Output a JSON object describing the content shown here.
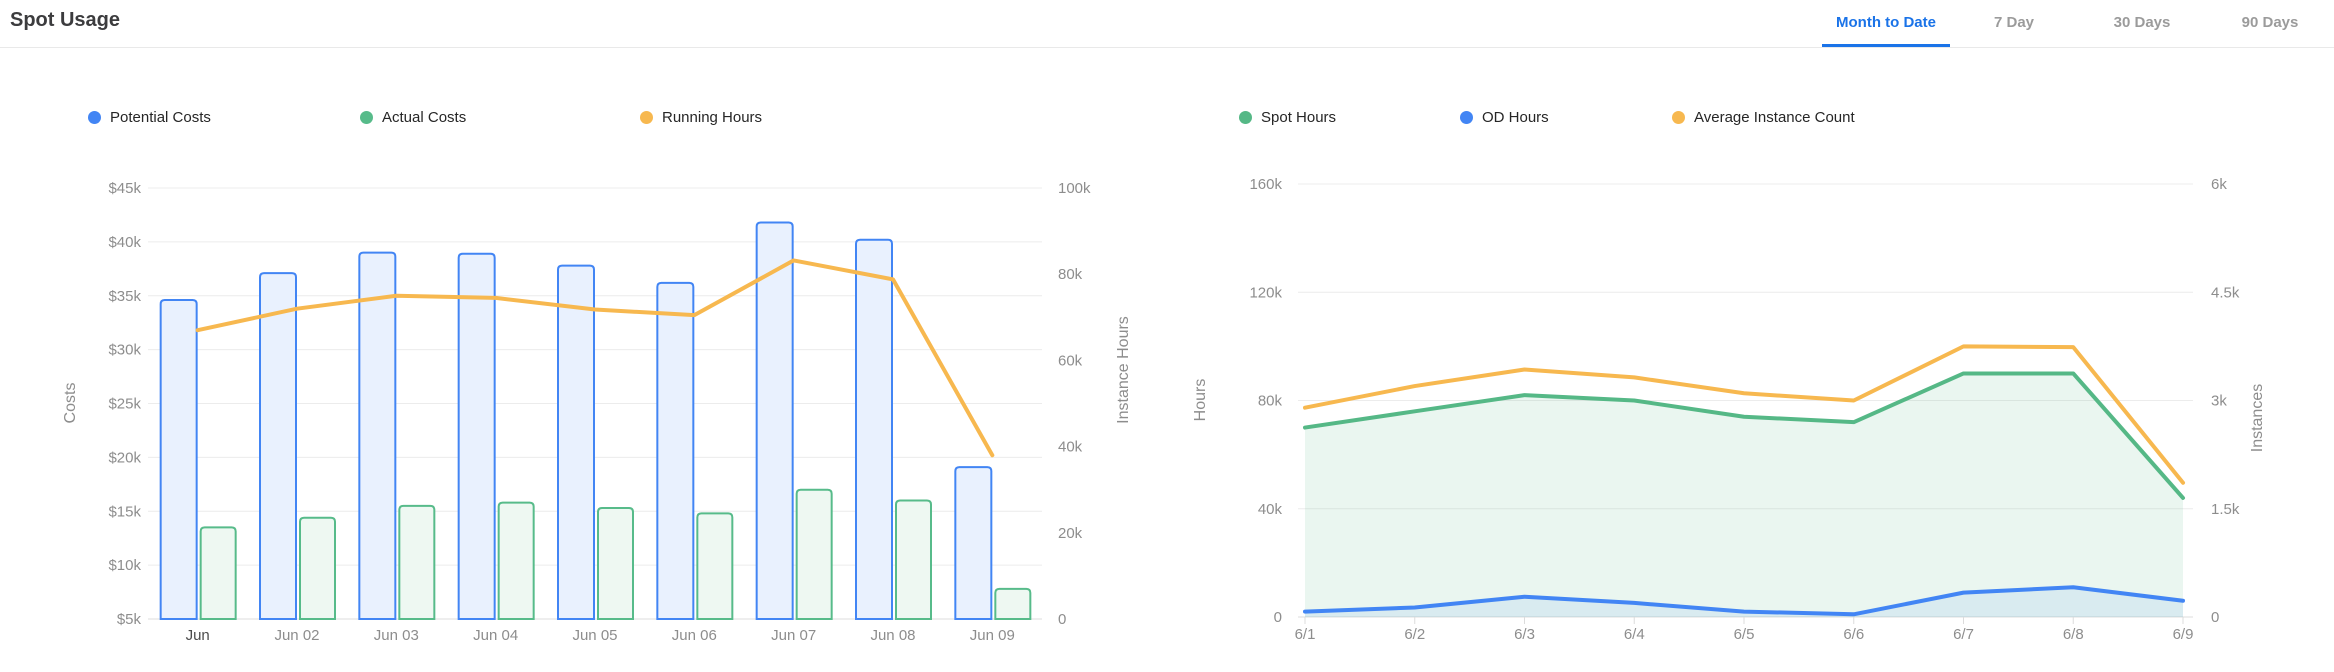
{
  "header": {
    "title": "Spot Usage",
    "tabs": [
      {
        "label": "Month to Date",
        "active": true
      },
      {
        "label": "7 Day",
        "active": false
      },
      {
        "label": "30 Days",
        "active": false
      },
      {
        "label": "90 Days",
        "active": false
      }
    ],
    "active_tab_color": "#1a73e8",
    "inactive_tab_color": "#9b9b9b"
  },
  "colors": {
    "grid": "#ececec",
    "axis_line": "#dcdcdc",
    "tick_text": "#8d8d8d",
    "axis_title_text": "#8d8d8d",
    "x_label_text": "#8d8d8d",
    "x_label_first_text": "#4c4c4c",
    "legend_text": "#262626"
  },
  "chart_data": [
    {
      "id": "costs-chart",
      "type": "bar",
      "title": "",
      "categories": [
        "Jun",
        "Jun 02",
        "Jun 03",
        "Jun 04",
        "Jun 05",
        "Jun 06",
        "Jun 07",
        "Jun 08",
        "Jun 09"
      ],
      "series": [
        {
          "name": "Potential Costs",
          "type": "bar",
          "axis": "left",
          "color": "#4285f4",
          "fill": "#e9f1fe",
          "values": [
            34600,
            37100,
            39000,
            38900,
            37800,
            36200,
            41800,
            40200,
            19100
          ]
        },
        {
          "name": "Actual Costs",
          "type": "bar",
          "axis": "left",
          "color": "#57bb8a",
          "fill": "#eef8f2",
          "values": [
            13500,
            14400,
            15500,
            15800,
            15300,
            14800,
            17000,
            16000,
            7800
          ]
        },
        {
          "name": "Running Hours",
          "type": "line",
          "axis": "right",
          "color": "#f7b84f",
          "values": [
            67000,
            72000,
            75000,
            74500,
            71800,
            70500,
            83200,
            78800,
            38000
          ]
        }
      ],
      "left_axis": {
        "label": "Costs",
        "min": 5000,
        "max": 45000,
        "ticks": [
          5000,
          10000,
          15000,
          20000,
          25000,
          30000,
          35000,
          40000,
          45000
        ],
        "tick_labels": [
          "$5k",
          "$10k",
          "$15k",
          "$20k",
          "$25k",
          "$30k",
          "$35k",
          "$40k",
          "$45k"
        ]
      },
      "right_axis": {
        "label": "Instance Hours",
        "min": 0,
        "max": 100000,
        "ticks": [
          0,
          20000,
          40000,
          60000,
          80000,
          100000
        ],
        "tick_labels": [
          "0",
          "20k",
          "40k",
          "60k",
          "80k",
          "100k"
        ]
      },
      "legend": [
        "Potential Costs",
        "Actual Costs",
        "Running Hours"
      ],
      "grid": true,
      "legend_position": "top"
    },
    {
      "id": "hours-chart",
      "type": "area",
      "title": "",
      "categories": [
        "6/1",
        "6/2",
        "6/3",
        "6/4",
        "6/5",
        "6/6",
        "6/7",
        "6/8",
        "6/9"
      ],
      "series": [
        {
          "name": "Spot Hours",
          "type": "area-line",
          "axis": "left",
          "color": "#55b886",
          "area": "rgba(85,184,134,0.12)",
          "values": [
            70000,
            76000,
            82000,
            80000,
            74000,
            72000,
            90000,
            90000,
            44000
          ]
        },
        {
          "name": "OD Hours",
          "type": "area-line",
          "axis": "left",
          "color": "#4285f4",
          "area": "rgba(66,133,244,0.10)",
          "values": [
            2000,
            3500,
            7500,
            5200,
            2000,
            1000,
            9000,
            11000,
            6000
          ]
        },
        {
          "name": "Average Instance Count",
          "type": "line",
          "axis": "right",
          "color": "#f7b84f",
          "values": [
            2900,
            3200,
            3430,
            3320,
            3100,
            3000,
            3750,
            3740,
            1860
          ]
        }
      ],
      "left_axis": {
        "label": "Hours",
        "min": 0,
        "max": 160000,
        "ticks": [
          0,
          40000,
          80000,
          120000,
          160000
        ],
        "tick_labels": [
          "0",
          "40k",
          "80k",
          "120k",
          "160k"
        ]
      },
      "right_axis": {
        "label": "Instances",
        "min": 0,
        "max": 6000,
        "ticks": [
          0,
          1500,
          3000,
          4500,
          6000
        ],
        "tick_labels": [
          "0",
          "1.5k",
          "3k",
          "4.5k",
          "6k"
        ]
      },
      "legend": [
        "Spot Hours",
        "OD Hours",
        "Average Instance Count"
      ],
      "grid": true,
      "legend_position": "top"
    }
  ]
}
